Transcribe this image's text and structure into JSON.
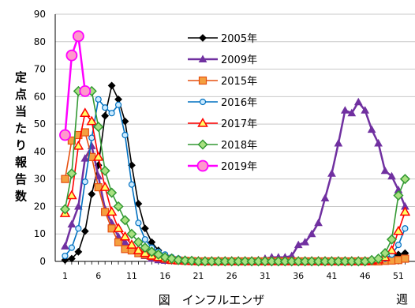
{
  "chart_data": {
    "type": "line",
    "caption": "図　インフルエンザ",
    "ylabel": "定点当たり報告数",
    "xlabel": "週",
    "ylim": [
      0,
      90
    ],
    "yticks": [
      0,
      10,
      20,
      30,
      40,
      50,
      60,
      70,
      80,
      90
    ],
    "xlim": [
      0,
      53
    ],
    "xticks": [
      1,
      6,
      11,
      16,
      21,
      26,
      31,
      36,
      41,
      46,
      51
    ],
    "grid": "horizontal",
    "legend_position": "upper-center",
    "series": [
      {
        "name": "2005年",
        "color": "#000000",
        "marker": "diamond",
        "values": [
          [
            1,
            0.5
          ],
          [
            2,
            1
          ],
          [
            3,
            3.5
          ],
          [
            4,
            11
          ],
          [
            5,
            24.5
          ],
          [
            6,
            35
          ],
          [
            7,
            53
          ],
          [
            8,
            64
          ],
          [
            9,
            59
          ],
          [
            10,
            51
          ],
          [
            11,
            35
          ],
          [
            12,
            21
          ],
          [
            13,
            12
          ],
          [
            14,
            7
          ],
          [
            15,
            4
          ],
          [
            16,
            2
          ],
          [
            17,
            1.5
          ],
          [
            18,
            1
          ],
          [
            19,
            0.5
          ],
          [
            20,
            0.3
          ],
          [
            21,
            0.2
          ],
          [
            22,
            0.1
          ],
          [
            23,
            0
          ],
          [
            24,
            0
          ],
          [
            25,
            0
          ],
          [
            26,
            0
          ],
          [
            27,
            0
          ],
          [
            28,
            0
          ],
          [
            29,
            0
          ],
          [
            30,
            0
          ],
          [
            31,
            0
          ],
          [
            32,
            0
          ],
          [
            33,
            0
          ],
          [
            34,
            0
          ],
          [
            35,
            0
          ],
          [
            36,
            0
          ],
          [
            37,
            0
          ],
          [
            38,
            0
          ],
          [
            39,
            0
          ],
          [
            40,
            0
          ],
          [
            41,
            0
          ],
          [
            42,
            0
          ],
          [
            43,
            0
          ],
          [
            44,
            0
          ],
          [
            45,
            0
          ],
          [
            46,
            0
          ],
          [
            47,
            0.3
          ],
          [
            48,
            0.6
          ],
          [
            49,
            1
          ],
          [
            50,
            1.5
          ],
          [
            51,
            2.5
          ],
          [
            52,
            3
          ]
        ]
      },
      {
        "name": "2009年",
        "color": "#7030A0",
        "marker": "triangle",
        "values": [
          [
            1,
            5.5
          ],
          [
            2,
            13.5
          ],
          [
            3,
            20
          ],
          [
            4,
            37.5
          ],
          [
            5,
            42
          ],
          [
            6,
            31
          ],
          [
            7,
            19
          ],
          [
            8,
            14
          ],
          [
            9,
            9
          ],
          [
            10,
            7
          ],
          [
            11,
            5
          ],
          [
            12,
            3
          ],
          [
            13,
            2
          ],
          [
            14,
            1
          ],
          [
            15,
            0.5
          ],
          [
            16,
            0.3
          ],
          [
            17,
            0.2
          ],
          [
            18,
            0.1
          ],
          [
            19,
            0
          ],
          [
            20,
            0
          ],
          [
            21,
            0
          ],
          [
            22,
            0
          ],
          [
            23,
            0
          ],
          [
            24,
            0
          ],
          [
            25,
            0
          ],
          [
            26,
            0
          ],
          [
            27,
            0
          ],
          [
            28,
            0
          ],
          [
            29,
            0.3
          ],
          [
            30,
            0.5
          ],
          [
            31,
            1
          ],
          [
            32,
            1.5
          ],
          [
            33,
            1.5
          ],
          [
            34,
            1.5
          ],
          [
            35,
            2
          ],
          [
            36,
            6
          ],
          [
            37,
            7
          ],
          [
            38,
            10
          ],
          [
            39,
            14
          ],
          [
            40,
            23
          ],
          [
            41,
            32
          ],
          [
            42,
            43
          ],
          [
            43,
            55
          ],
          [
            44,
            54
          ],
          [
            45,
            58
          ],
          [
            46,
            55
          ],
          [
            47,
            48
          ],
          [
            48,
            43
          ],
          [
            49,
            33
          ],
          [
            50,
            31
          ],
          [
            51,
            26
          ],
          [
            52,
            20
          ]
        ]
      },
      {
        "name": "2015年",
        "color": "#E65010",
        "marker": "square",
        "values": [
          [
            1,
            30
          ],
          [
            2,
            44
          ],
          [
            3,
            46
          ],
          [
            4,
            47
          ],
          [
            5,
            38
          ],
          [
            6,
            27
          ],
          [
            7,
            18
          ],
          [
            8,
            12
          ],
          [
            9,
            7
          ],
          [
            10,
            4.5
          ],
          [
            11,
            4
          ],
          [
            12,
            3
          ],
          [
            13,
            2.5
          ],
          [
            14,
            2
          ],
          [
            15,
            1.5
          ],
          [
            16,
            1
          ],
          [
            17,
            0.5
          ],
          [
            18,
            0.3
          ],
          [
            19,
            0.2
          ],
          [
            20,
            0.1
          ],
          [
            21,
            0
          ],
          [
            22,
            0
          ],
          [
            23,
            0
          ],
          [
            24,
            0
          ],
          [
            25,
            0
          ],
          [
            26,
            0
          ],
          [
            27,
            0
          ],
          [
            28,
            0
          ],
          [
            29,
            0
          ],
          [
            30,
            0
          ],
          [
            31,
            0
          ],
          [
            32,
            0
          ],
          [
            33,
            0
          ],
          [
            34,
            0
          ],
          [
            35,
            0
          ],
          [
            36,
            0
          ],
          [
            37,
            0
          ],
          [
            38,
            0
          ],
          [
            39,
            0
          ],
          [
            40,
            0
          ],
          [
            41,
            0
          ],
          [
            42,
            0
          ],
          [
            43,
            0
          ],
          [
            44,
            0
          ],
          [
            45,
            0
          ],
          [
            46,
            0
          ],
          [
            47,
            0
          ],
          [
            48,
            0
          ],
          [
            49,
            0.2
          ],
          [
            50,
            0.3
          ],
          [
            51,
            0.5
          ],
          [
            52,
            1
          ]
        ]
      },
      {
        "name": "2016年",
        "color": "#0070C0",
        "marker": "circle",
        "values": [
          [
            1,
            2
          ],
          [
            2,
            5
          ],
          [
            3,
            12
          ],
          [
            4,
            29
          ],
          [
            5,
            45
          ],
          [
            6,
            59
          ],
          [
            7,
            56
          ],
          [
            8,
            54
          ],
          [
            9,
            57
          ],
          [
            10,
            46
          ],
          [
            11,
            28
          ],
          [
            12,
            14
          ],
          [
            13,
            8
          ],
          [
            14,
            5
          ],
          [
            15,
            3.5
          ],
          [
            16,
            2.5
          ],
          [
            17,
            1.5
          ],
          [
            18,
            1
          ],
          [
            19,
            0.5
          ],
          [
            20,
            0.3
          ],
          [
            21,
            0.2
          ],
          [
            22,
            0.1
          ],
          [
            23,
            0
          ],
          [
            24,
            0
          ],
          [
            25,
            0
          ],
          [
            26,
            0
          ],
          [
            27,
            0
          ],
          [
            28,
            0
          ],
          [
            29,
            0
          ],
          [
            30,
            0
          ],
          [
            31,
            0
          ],
          [
            32,
            0
          ],
          [
            33,
            0
          ],
          [
            34,
            0
          ],
          [
            35,
            0
          ],
          [
            36,
            0
          ],
          [
            37,
            0
          ],
          [
            38,
            0
          ],
          [
            39,
            0
          ],
          [
            40,
            0
          ],
          [
            41,
            0
          ],
          [
            42,
            0
          ],
          [
            43,
            0
          ],
          [
            44,
            0
          ],
          [
            45,
            0
          ],
          [
            46,
            0
          ],
          [
            47,
            0.3
          ],
          [
            48,
            0.6
          ],
          [
            49,
            1
          ],
          [
            50,
            2.5
          ],
          [
            51,
            6
          ],
          [
            52,
            12
          ]
        ]
      },
      {
        "name": "2017年",
        "color": "#FF0000",
        "marker": "triangle-open",
        "values": [
          [
            1,
            17.5
          ],
          [
            2,
            24
          ],
          [
            3,
            42
          ],
          [
            4,
            54
          ],
          [
            5,
            51
          ],
          [
            6,
            38
          ],
          [
            7,
            27
          ],
          [
            8,
            18
          ],
          [
            9,
            12
          ],
          [
            10,
            9
          ],
          [
            11,
            6
          ],
          [
            12,
            4
          ],
          [
            13,
            3
          ],
          [
            14,
            2
          ],
          [
            15,
            1.5
          ],
          [
            16,
            1
          ],
          [
            17,
            0.5
          ],
          [
            18,
            0.3
          ],
          [
            19,
            0.2
          ],
          [
            20,
            0.1
          ],
          [
            21,
            0
          ],
          [
            22,
            0
          ],
          [
            23,
            0
          ],
          [
            24,
            0
          ],
          [
            25,
            0
          ],
          [
            26,
            0
          ],
          [
            27,
            0
          ],
          [
            28,
            0
          ],
          [
            29,
            0
          ],
          [
            30,
            0
          ],
          [
            31,
            0
          ],
          [
            32,
            0
          ],
          [
            33,
            0
          ],
          [
            34,
            0
          ],
          [
            35,
            0
          ],
          [
            36,
            0
          ],
          [
            37,
            0
          ],
          [
            38,
            0
          ],
          [
            39,
            0
          ],
          [
            40,
            0
          ],
          [
            41,
            0
          ],
          [
            42,
            0
          ],
          [
            43,
            0
          ],
          [
            44,
            0
          ],
          [
            45,
            0
          ],
          [
            46,
            0
          ],
          [
            47,
            0.3
          ],
          [
            48,
            0.6
          ],
          [
            49,
            1.5
          ],
          [
            50,
            4
          ],
          [
            51,
            11
          ],
          [
            52,
            18
          ]
        ]
      },
      {
        "name": "2018年",
        "color": "#339933",
        "marker": "diamond-open",
        "values": [
          [
            1,
            19
          ],
          [
            2,
            32
          ],
          [
            3,
            62
          ],
          [
            4,
            62
          ],
          [
            5,
            62
          ],
          [
            6,
            49
          ],
          [
            7,
            33
          ],
          [
            8,
            25
          ],
          [
            9,
            20
          ],
          [
            10,
            15
          ],
          [
            11,
            10
          ],
          [
            12,
            7
          ],
          [
            13,
            5
          ],
          [
            14,
            3.5
          ],
          [
            15,
            2.5
          ],
          [
            16,
            1.5
          ],
          [
            17,
            1
          ],
          [
            18,
            0.5
          ],
          [
            19,
            0.3
          ],
          [
            20,
            0.2
          ],
          [
            21,
            0
          ],
          [
            22,
            0
          ],
          [
            23,
            0
          ],
          [
            24,
            0
          ],
          [
            25,
            0
          ],
          [
            26,
            0
          ],
          [
            27,
            0
          ],
          [
            28,
            0
          ],
          [
            29,
            0
          ],
          [
            30,
            0
          ],
          [
            31,
            0
          ],
          [
            32,
            0
          ],
          [
            33,
            0
          ],
          [
            34,
            0
          ],
          [
            35,
            0
          ],
          [
            36,
            0
          ],
          [
            37,
            0
          ],
          [
            38,
            0
          ],
          [
            39,
            0
          ],
          [
            40,
            0
          ],
          [
            41,
            0
          ],
          [
            42,
            0
          ],
          [
            43,
            0
          ],
          [
            44,
            0
          ],
          [
            45,
            0
          ],
          [
            46,
            0
          ],
          [
            47,
            0.5
          ],
          [
            48,
            1
          ],
          [
            49,
            3
          ],
          [
            50,
            8
          ],
          [
            51,
            24
          ],
          [
            52,
            30
          ]
        ]
      },
      {
        "name": "2019年",
        "color": "#FF00FF",
        "marker": "circle-big",
        "values": [
          [
            1,
            46
          ],
          [
            2,
            75
          ],
          [
            3,
            82
          ],
          [
            4,
            62
          ]
        ]
      }
    ]
  }
}
